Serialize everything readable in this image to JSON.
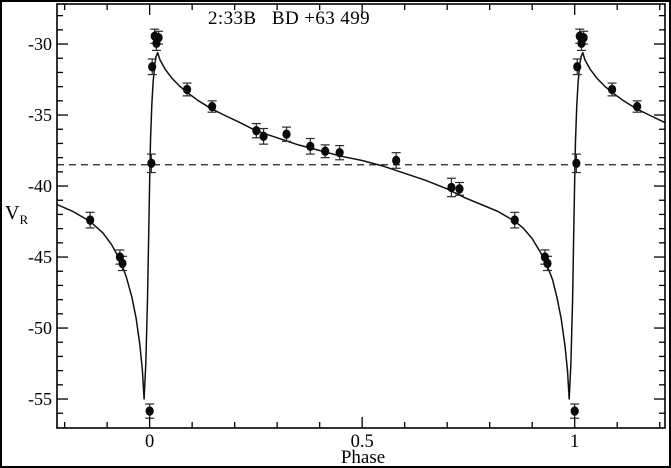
{
  "chart_data": {
    "type": "scatter",
    "title": "2:33B   BD +63 499",
    "xlabel": "Phase",
    "ylabel": "V_R",
    "ylabel_main": "V",
    "ylabel_sub": "R",
    "xlim": [
      -0.218,
      1.2125
    ],
    "ylim": [
      -57.04,
      -27.18
    ],
    "grid": false,
    "legend": "none",
    "x_major_ticks": {
      "values": [
        0,
        0.5,
        1
      ],
      "labels": [
        "0",
        "0.5",
        "1"
      ]
    },
    "x_minor_ticks": [
      -0.2,
      -0.1,
      0.1,
      0.2,
      0.3,
      0.4,
      0.6,
      0.7,
      0.8,
      0.9,
      1.1,
      1.2
    ],
    "y_major_ticks": {
      "values": [
        -30,
        -35,
        -40,
        -45,
        -50,
        -55
      ],
      "labels": [
        "-30",
        "-35",
        "-40",
        "-45",
        "-50",
        "-55"
      ]
    },
    "y_minor_ticks": [
      -28,
      -29,
      -31,
      -32,
      -33,
      -34,
      -36,
      -37,
      -38,
      -39,
      -41,
      -42,
      -43,
      -44,
      -46,
      -47,
      -48,
      -49,
      -51,
      -52,
      -53,
      -54,
      -56
    ],
    "dashed_systemic_velocity": -38.5,
    "points_format": "[phase, velocity, error]",
    "points": [
      [
        -0.14,
        -42.4,
        0.55
      ],
      [
        -0.07,
        -45.0,
        0.5
      ],
      [
        -0.064,
        -45.45,
        0.5
      ],
      [
        0.0,
        -55.85,
        0.5
      ],
      [
        0.004,
        -38.4,
        0.65
      ],
      [
        0.006,
        -31.6,
        0.55
      ],
      [
        0.012,
        -29.45,
        0.5
      ],
      [
        0.016,
        -29.95,
        0.5
      ],
      [
        0.021,
        -29.55,
        0.45
      ],
      [
        0.088,
        -33.2,
        0.45
      ],
      [
        0.147,
        -34.4,
        0.4
      ],
      [
        0.251,
        -36.1,
        0.5
      ],
      [
        0.268,
        -36.5,
        0.55
      ],
      [
        0.322,
        -36.35,
        0.5
      ],
      [
        0.378,
        -37.2,
        0.55
      ],
      [
        0.413,
        -37.55,
        0.45
      ],
      [
        0.447,
        -37.65,
        0.5
      ],
      [
        0.58,
        -38.2,
        0.55
      ],
      [
        0.71,
        -40.1,
        0.65
      ],
      [
        0.729,
        -40.2,
        0.45
      ],
      [
        0.859,
        -42.4,
        0.55
      ],
      [
        0.93,
        -45.0,
        0.5
      ],
      [
        0.936,
        -45.45,
        0.5
      ],
      [
        1.0,
        -55.85,
        0.5
      ],
      [
        1.004,
        -38.4,
        0.65
      ],
      [
        1.006,
        -31.6,
        0.55
      ],
      [
        1.012,
        -29.45,
        0.5
      ],
      [
        1.016,
        -29.95,
        0.5
      ],
      [
        1.021,
        -29.55,
        0.45
      ],
      [
        1.088,
        -33.2,
        0.45
      ],
      [
        1.147,
        -34.4,
        0.4
      ]
    ],
    "model_curve_format": "[phase, velocity]",
    "model_curve": [
      [
        -0.218,
        -41.3
      ],
      [
        -0.18,
        -41.8
      ],
      [
        -0.14,
        -42.5
      ],
      [
        -0.11,
        -43.3
      ],
      [
        -0.09,
        -44.1
      ],
      [
        -0.07,
        -45.2
      ],
      [
        -0.055,
        -46.4
      ],
      [
        -0.042,
        -47.8
      ],
      [
        -0.032,
        -49.3
      ],
      [
        -0.023,
        -51.2
      ],
      [
        -0.017,
        -53.0
      ],
      [
        -0.013,
        -55.0
      ],
      [
        -0.009,
        -52.5
      ],
      [
        -0.005,
        -48.0
      ],
      [
        -0.002,
        -43.0
      ],
      [
        0.0,
        -39.5
      ],
      [
        0.002,
        -36.8
      ],
      [
        0.005,
        -34.3
      ],
      [
        0.008,
        -32.7
      ],
      [
        0.012,
        -31.4
      ],
      [
        0.015,
        -30.9
      ],
      [
        0.019,
        -30.6
      ],
      [
        0.024,
        -31.1
      ],
      [
        0.037,
        -31.8
      ],
      [
        0.052,
        -32.4
      ],
      [
        0.07,
        -32.95
      ],
      [
        0.09,
        -33.45
      ],
      [
        0.115,
        -34.0
      ],
      [
        0.145,
        -34.55
      ],
      [
        0.175,
        -35.0
      ],
      [
        0.21,
        -35.5
      ],
      [
        0.25,
        -36.1
      ],
      [
        0.3,
        -36.6
      ],
      [
        0.35,
        -37.1
      ],
      [
        0.4,
        -37.5
      ],
      [
        0.45,
        -37.9
      ],
      [
        0.5,
        -38.2
      ],
      [
        0.55,
        -38.6
      ],
      [
        0.6,
        -39.1
      ],
      [
        0.65,
        -39.6
      ],
      [
        0.7,
        -40.2
      ],
      [
        0.74,
        -40.8
      ],
      [
        0.78,
        -41.3
      ],
      [
        0.82,
        -41.8
      ],
      [
        0.86,
        -42.5
      ],
      [
        0.88,
        -43.0
      ],
      [
        0.9,
        -43.7
      ],
      [
        0.92,
        -44.7
      ],
      [
        0.935,
        -45.6
      ],
      [
        0.948,
        -46.6
      ],
      [
        0.958,
        -47.8
      ],
      [
        0.968,
        -49.3
      ],
      [
        0.977,
        -51.2
      ],
      [
        0.983,
        -53.0
      ],
      [
        0.987,
        -55.0
      ],
      [
        0.991,
        -52.5
      ],
      [
        0.995,
        -48.0
      ],
      [
        0.998,
        -43.0
      ],
      [
        1.0,
        -39.5
      ],
      [
        1.002,
        -36.8
      ],
      [
        1.005,
        -34.3
      ],
      [
        1.008,
        -32.7
      ],
      [
        1.012,
        -31.4
      ],
      [
        1.015,
        -30.9
      ],
      [
        1.019,
        -30.6
      ],
      [
        1.024,
        -31.1
      ],
      [
        1.037,
        -31.8
      ],
      [
        1.052,
        -32.4
      ],
      [
        1.07,
        -32.95
      ],
      [
        1.09,
        -33.45
      ],
      [
        1.115,
        -34.0
      ],
      [
        1.145,
        -34.55
      ],
      [
        1.175,
        -35.0
      ],
      [
        1.21,
        -35.5
      ],
      [
        1.2125,
        -35.52
      ]
    ],
    "colors": {
      "ink": "#0a0a0a",
      "curve": "#101010",
      "error_bar": "#2b2b2b",
      "dashed_line": "#222222",
      "background": "#ffffff"
    }
  }
}
